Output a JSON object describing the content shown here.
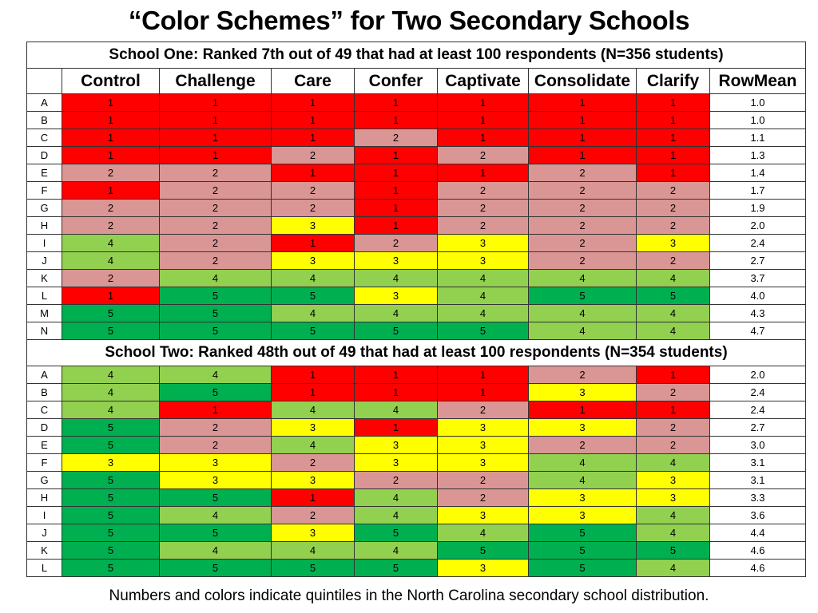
{
  "title": "“Color Schemes” for Two  Secondary Schools",
  "footer": "Numbers and colors indicate quintiles in the North Carolina secondary school distribution.",
  "chart_data": {
    "type": "table",
    "columns": [
      "",
      "Control",
      "Challenge",
      "Care",
      "Confer",
      "Captivate",
      "Consolidate",
      "Clarify",
      "RowMean"
    ],
    "quintile_colors": {
      "1": "#ff0000",
      "2": "#da9694",
      "3": "#ffff00",
      "4": "#92d050",
      "5": "#00b050"
    },
    "sections": [
      {
        "heading": "School One: Ranked 7th out of 49 that had at least 100 respondents (N=356 students)",
        "rows": [
          {
            "label": "A",
            "values": [
              1,
              1,
              1,
              1,
              1,
              1,
              1
            ],
            "mean": "1.0"
          },
          {
            "label": "B",
            "values": [
              1,
              1,
              1,
              1,
              1,
              1,
              1
            ],
            "mean": "1.0"
          },
          {
            "label": "C",
            "values": [
              1,
              1,
              1,
              2,
              1,
              1,
              1
            ],
            "mean": "1.1"
          },
          {
            "label": "D",
            "values": [
              1,
              1,
              2,
              1,
              2,
              1,
              1
            ],
            "mean": "1.3"
          },
          {
            "label": "E",
            "values": [
              2,
              2,
              1,
              1,
              1,
              2,
              1
            ],
            "mean": "1.4"
          },
          {
            "label": "F",
            "values": [
              1,
              2,
              2,
              1,
              2,
              2,
              2
            ],
            "mean": "1.7"
          },
          {
            "label": "G",
            "values": [
              2,
              2,
              2,
              1,
              2,
              2,
              2
            ],
            "mean": "1.9"
          },
          {
            "label": "H",
            "values": [
              2,
              2,
              3,
              1,
              2,
              2,
              2
            ],
            "mean": "2.0"
          },
          {
            "label": "I",
            "values": [
              4,
              2,
              1,
              2,
              3,
              2,
              3
            ],
            "mean": "2.4"
          },
          {
            "label": "J",
            "values": [
              4,
              2,
              3,
              3,
              3,
              2,
              2
            ],
            "mean": "2.7"
          },
          {
            "label": "K",
            "values": [
              2,
              4,
              4,
              4,
              4,
              4,
              4
            ],
            "mean": "3.7"
          },
          {
            "label": "L",
            "values": [
              1,
              5,
              5,
              3,
              4,
              5,
              5
            ],
            "mean": "4.0"
          },
          {
            "label": "M",
            "values": [
              5,
              5,
              4,
              4,
              4,
              4,
              4
            ],
            "mean": "4.3"
          },
          {
            "label": "N",
            "values": [
              5,
              5,
              5,
              5,
              5,
              4,
              4
            ],
            "mean": "4.7"
          }
        ]
      },
      {
        "heading": "School Two: Ranked 48th out of 49 that had at least 100 respondents (N=354 students)",
        "rows": [
          {
            "label": "A",
            "values": [
              4,
              4,
              1,
              1,
              1,
              2,
              1
            ],
            "mean": "2.0"
          },
          {
            "label": "B",
            "values": [
              4,
              5,
              1,
              1,
              1,
              3,
              2
            ],
            "mean": "2.4"
          },
          {
            "label": "C",
            "values": [
              4,
              1,
              4,
              4,
              2,
              1,
              1
            ],
            "mean": "2.4"
          },
          {
            "label": "D",
            "values": [
              5,
              2,
              3,
              1,
              3,
              3,
              2
            ],
            "mean": "2.7"
          },
          {
            "label": "E",
            "values": [
              5,
              2,
              4,
              3,
              3,
              2,
              2
            ],
            "mean": "3.0"
          },
          {
            "label": "F",
            "values": [
              3,
              3,
              2,
              3,
              3,
              4,
              4
            ],
            "mean": "3.1"
          },
          {
            "label": "G",
            "values": [
              5,
              3,
              3,
              2,
              2,
              4,
              3
            ],
            "mean": "3.1"
          },
          {
            "label": "H",
            "values": [
              5,
              5,
              1,
              4,
              2,
              3,
              3
            ],
            "mean": "3.3"
          },
          {
            "label": "I",
            "values": [
              5,
              4,
              2,
              4,
              3,
              3,
              4
            ],
            "mean": "3.6"
          },
          {
            "label": "J",
            "values": [
              5,
              5,
              3,
              5,
              4,
              5,
              4
            ],
            "mean": "4.4"
          },
          {
            "label": "K",
            "values": [
              5,
              4,
              4,
              4,
              5,
              5,
              5
            ],
            "mean": "4.6"
          },
          {
            "label": "L",
            "values": [
              5,
              5,
              5,
              5,
              3,
              5,
              4
            ],
            "mean": "4.6"
          }
        ]
      }
    ]
  }
}
